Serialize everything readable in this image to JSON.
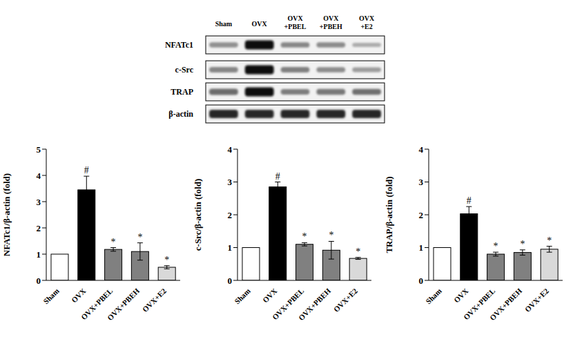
{
  "blot": {
    "lanes": [
      [
        "Sham"
      ],
      [
        "OVX"
      ],
      [
        "OVX",
        "+PBEL"
      ],
      [
        "OVX",
        "+PBEH"
      ],
      [
        "OVX",
        "+E2"
      ]
    ],
    "rows": [
      "NFATc1",
      "c-Src",
      "TRAP",
      "β-actin"
    ]
  },
  "chart_data": [
    {
      "type": "bar",
      "y_label": "NFATc1/β-actin  (fold)",
      "categories": [
        "Sham",
        "OVX",
        "OVX+PBEL",
        "OVX+PBEH",
        "OVX+E2"
      ],
      "values": [
        1,
        3.45,
        1.18,
        1.1,
        0.5
      ],
      "error": [
        null,
        0.52,
        0.07,
        0.33,
        0.06
      ],
      "annotations": [
        null,
        "#",
        "*",
        "*",
        "*"
      ],
      "colors": [
        "#ffffff",
        "#000000",
        "#808080",
        "#808080",
        "#d9d9d9"
      ],
      "ylim": [
        0,
        5
      ],
      "yticks": [
        0,
        1,
        2,
        3,
        4,
        5
      ]
    },
    {
      "type": "bar",
      "y_label": "c-Src/β-actin  (fold)",
      "categories": [
        "Sham",
        "OVX",
        "OVX+PBEL",
        "OVX+PBEH",
        "OVX+E2"
      ],
      "values": [
        1,
        2.85,
        1.1,
        0.92,
        0.67
      ],
      "error": [
        null,
        0.15,
        0.05,
        0.27,
        0.03
      ],
      "annotations": [
        null,
        "#",
        "*",
        "*",
        "*"
      ],
      "colors": [
        "#ffffff",
        "#000000",
        "#808080",
        "#808080",
        "#d9d9d9"
      ],
      "ylim": [
        0,
        4
      ],
      "yticks": [
        0,
        1,
        2,
        3,
        4
      ]
    },
    {
      "type": "bar",
      "y_label": "TRAP/β-actin  (fold)",
      "categories": [
        "Sham",
        "OVX",
        "OVX+PBEL",
        "OVX+PBEH",
        "OVX+E2"
      ],
      "values": [
        1,
        2.03,
        0.8,
        0.85,
        0.95
      ],
      "error": [
        null,
        0.22,
        0.06,
        0.08,
        0.09
      ],
      "annotations": [
        null,
        "#",
        "*",
        "*",
        "*"
      ],
      "colors": [
        "#ffffff",
        "#000000",
        "#808080",
        "#808080",
        "#d9d9d9"
      ],
      "ylim": [
        0,
        4
      ],
      "yticks": [
        0,
        1,
        2,
        3,
        4
      ]
    }
  ]
}
